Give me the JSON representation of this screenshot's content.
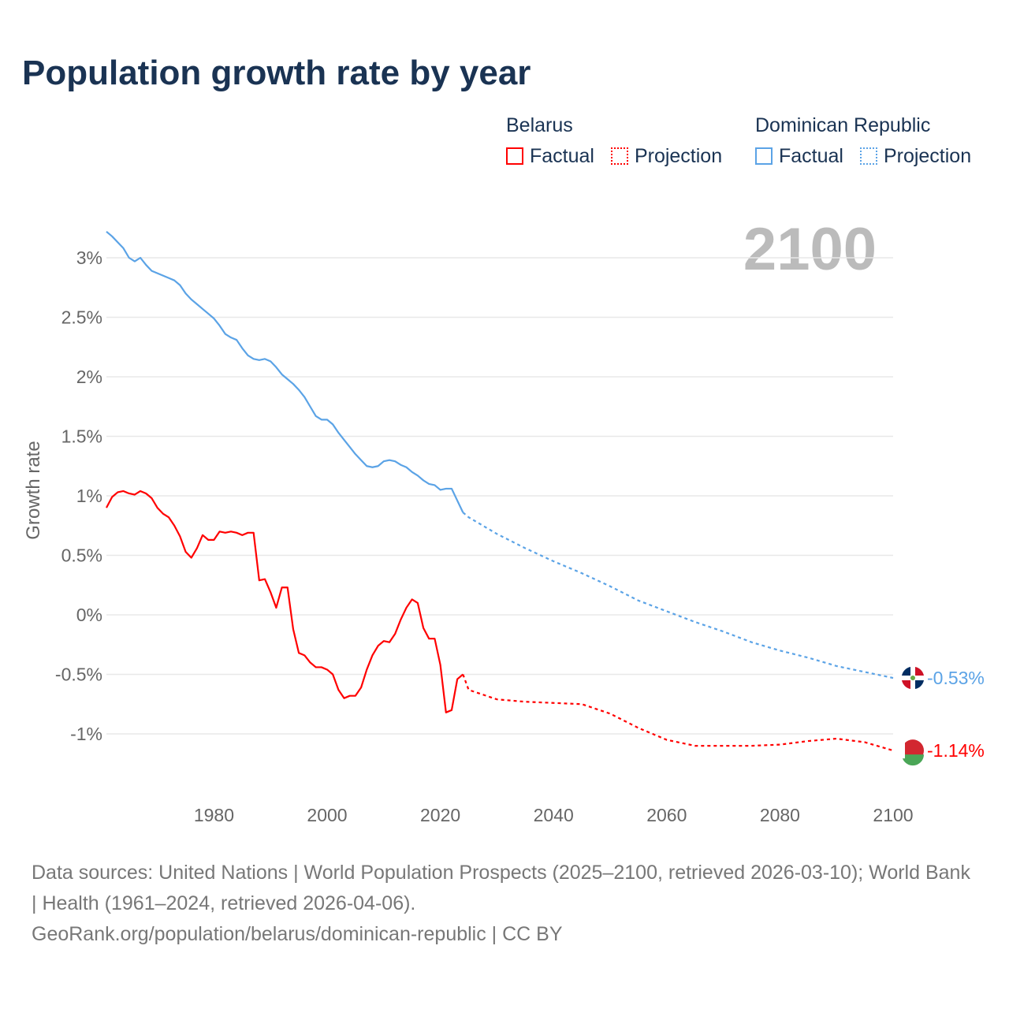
{
  "title": "Population growth rate by year",
  "legend": {
    "groups": [
      {
        "name": "Belarus",
        "factual": "Factual",
        "projection": "Projection",
        "color": "#ff0000"
      },
      {
        "name": "Dominican Republic",
        "factual": "Factual",
        "projection": "Projection",
        "color": "#5ba3e6"
      }
    ]
  },
  "year_label": "2100",
  "source_lines": [
    "Data sources: United Nations | World Population Prospects (2025–2100, retrieved 2026-03-10); World Bank | Health (1961–2024, retrieved 2026-04-06).",
    "GeoRank.org/population/belarus/dominican-republic | CC BY"
  ],
  "chart_data": {
    "type": "line",
    "title": "Population growth rate by year",
    "xlabel": "",
    "ylabel": "Growth rate",
    "xlim": [
      1961,
      2100
    ],
    "ylim": [
      -1.5,
      3.3
    ],
    "xticks": [
      1980,
      2000,
      2020,
      2040,
      2060,
      2080,
      2100
    ],
    "yticks": [
      {
        "v": 3,
        "l": "3%"
      },
      {
        "v": 2.5,
        "l": "2.5%"
      },
      {
        "v": 2,
        "l": "2%"
      },
      {
        "v": 1.5,
        "l": "1.5%"
      },
      {
        "v": 1,
        "l": "1%"
      },
      {
        "v": 0.5,
        "l": "0.5%"
      },
      {
        "v": 0,
        "l": "0%"
      },
      {
        "v": -0.5,
        "l": "-0.5%"
      },
      {
        "v": -1,
        "l": "-1%"
      }
    ],
    "grid": true,
    "series": [
      {
        "name": "Dominican Republic",
        "color": "#5ba3e6",
        "end_label": "-0.53%",
        "factual": {
          "x_start": 1961,
          "values": [
            3.22,
            3.18,
            3.13,
            3.08,
            3.0,
            2.97,
            3.0,
            2.94,
            2.89,
            2.87,
            2.85,
            2.83,
            2.81,
            2.77,
            2.7,
            2.65,
            2.61,
            2.57,
            2.53,
            2.49,
            2.43,
            2.36,
            2.33,
            2.31,
            2.24,
            2.18,
            2.15,
            2.14,
            2.15,
            2.13,
            2.08,
            2.02,
            1.98,
            1.94,
            1.89,
            1.83,
            1.75,
            1.67,
            1.64,
            1.64,
            1.6,
            1.53,
            1.47,
            1.41,
            1.35,
            1.3,
            1.25,
            1.24,
            1.25,
            1.29,
            1.3,
            1.29,
            1.26,
            1.24,
            1.2,
            1.17,
            1.13,
            1.1,
            1.09,
            1.05,
            1.06,
            1.06,
            0.96,
            0.86
          ]
        },
        "projection": {
          "x": [
            2024,
            2025,
            2030,
            2035,
            2040,
            2045,
            2050,
            2055,
            2060,
            2065,
            2070,
            2075,
            2080,
            2085,
            2090,
            2095,
            2100
          ],
          "values": [
            0.86,
            0.82,
            0.68,
            0.56,
            0.45,
            0.35,
            0.24,
            0.12,
            0.03,
            -0.06,
            -0.14,
            -0.23,
            -0.3,
            -0.36,
            -0.43,
            -0.48,
            -0.53
          ]
        }
      },
      {
        "name": "Belarus",
        "color": "#ff0000",
        "end_label": "-1.14%",
        "factual": {
          "x_start": 1961,
          "values": [
            0.9,
            0.99,
            1.03,
            1.04,
            1.02,
            1.01,
            1.04,
            1.02,
            0.98,
            0.9,
            0.85,
            0.82,
            0.75,
            0.66,
            0.53,
            0.48,
            0.56,
            0.67,
            0.63,
            0.63,
            0.7,
            0.69,
            0.7,
            0.69,
            0.67,
            0.69,
            0.69,
            0.29,
            0.3,
            0.19,
            0.06,
            0.23,
            0.23,
            -0.12,
            -0.32,
            -0.34,
            -0.4,
            -0.44,
            -0.44,
            -0.46,
            -0.5,
            -0.63,
            -0.7,
            -0.68,
            -0.68,
            -0.61,
            -0.46,
            -0.34,
            -0.26,
            -0.22,
            -0.23,
            -0.16,
            -0.04,
            0.06,
            0.13,
            0.1,
            -0.11,
            -0.2,
            -0.2,
            -0.42,
            -0.82,
            -0.8,
            -0.54,
            -0.5
          ]
        },
        "projection": {
          "x": [
            2024,
            2025,
            2030,
            2035,
            2040,
            2045,
            2050,
            2055,
            2060,
            2065,
            2070,
            2075,
            2080,
            2085,
            2090,
            2095,
            2100
          ],
          "values": [
            -0.5,
            -0.63,
            -0.71,
            -0.73,
            -0.74,
            -0.75,
            -0.83,
            -0.95,
            -1.05,
            -1.1,
            -1.1,
            -1.1,
            -1.09,
            -1.06,
            -1.04,
            -1.07,
            -1.14
          ]
        }
      }
    ]
  }
}
